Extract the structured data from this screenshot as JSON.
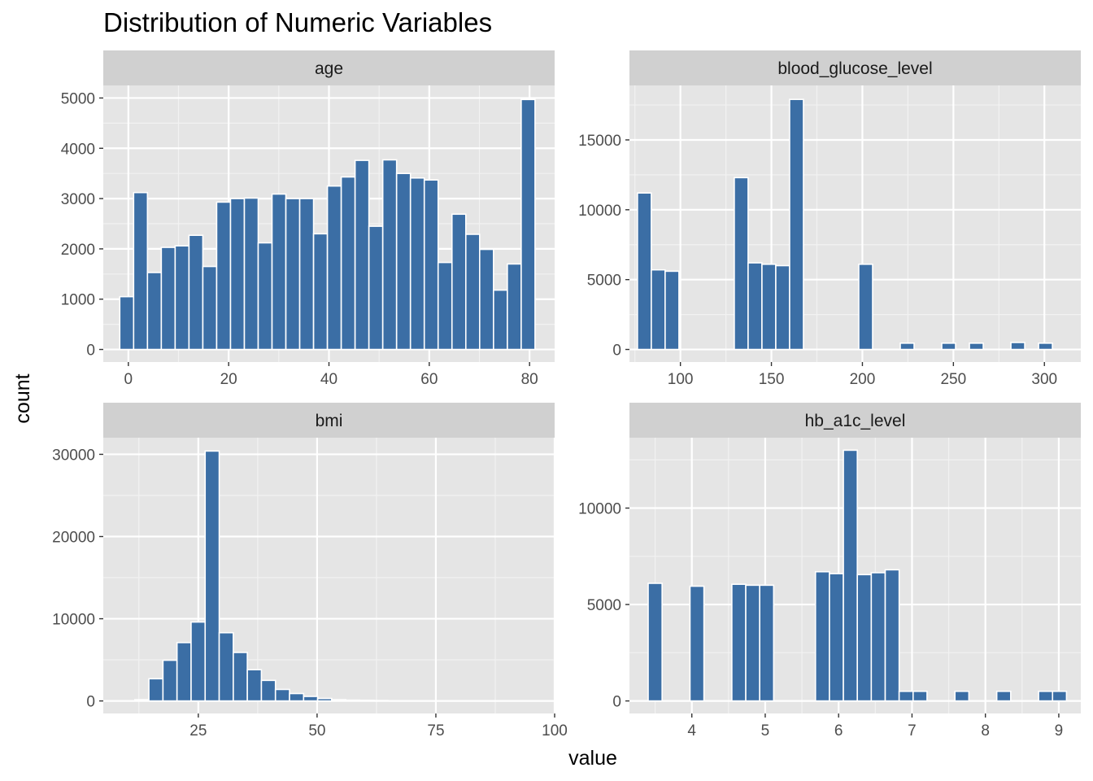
{
  "chart_data": {
    "type": "bar",
    "title": "Distribution of Numeric Variables",
    "xlabel": "value",
    "ylabel": "count",
    "grid": true,
    "bar_color": "#3b6ea5",
    "bar_outline_color": "#ffffff",
    "panel_background": "#e5e5e5",
    "strip_background": "#d0d0d0",
    "facets": [
      {
        "name": "age",
        "xlim": [
          -5,
          85
        ],
        "ylim": [
          -250,
          5250
        ],
        "x_ticks": [
          0,
          20,
          40,
          60,
          80
        ],
        "y_ticks": [
          0,
          1000,
          2000,
          3000,
          4000,
          5000
        ],
        "bin_width": 2.76,
        "bins": [
          {
            "x": -0.33,
            "count": 1050
          },
          {
            "x": 2.43,
            "count": 3120
          },
          {
            "x": 5.19,
            "count": 1530
          },
          {
            "x": 7.95,
            "count": 2030
          },
          {
            "x": 10.71,
            "count": 2060
          },
          {
            "x": 13.47,
            "count": 2270
          },
          {
            "x": 16.23,
            "count": 1650
          },
          {
            "x": 18.99,
            "count": 2930
          },
          {
            "x": 21.75,
            "count": 3000
          },
          {
            "x": 24.51,
            "count": 3010
          },
          {
            "x": 27.27,
            "count": 2120
          },
          {
            "x": 30.03,
            "count": 3090
          },
          {
            "x": 32.79,
            "count": 3000
          },
          {
            "x": 35.55,
            "count": 3000
          },
          {
            "x": 38.31,
            "count": 2300
          },
          {
            "x": 41.07,
            "count": 3250
          },
          {
            "x": 43.83,
            "count": 3430
          },
          {
            "x": 46.59,
            "count": 3760
          },
          {
            "x": 49.35,
            "count": 2450
          },
          {
            "x": 52.11,
            "count": 3770
          },
          {
            "x": 54.87,
            "count": 3500
          },
          {
            "x": 57.63,
            "count": 3410
          },
          {
            "x": 60.39,
            "count": 3370
          },
          {
            "x": 63.15,
            "count": 1730
          },
          {
            "x": 65.91,
            "count": 2690
          },
          {
            "x": 68.67,
            "count": 2290
          },
          {
            "x": 71.43,
            "count": 1990
          },
          {
            "x": 74.19,
            "count": 1180
          },
          {
            "x": 76.95,
            "count": 1700
          },
          {
            "x": 79.71,
            "count": 4970
          }
        ]
      },
      {
        "name": "blood_glucose_level",
        "xlim": [
          72,
          320
        ],
        "ylim": [
          -900,
          18900
        ],
        "x_ticks": [
          100,
          150,
          200,
          250,
          300
        ],
        "y_ticks": [
          0,
          5000,
          10000,
          15000
        ],
        "bin_width": 7.6,
        "bins": [
          {
            "x": 80.2,
            "count": 11200
          },
          {
            "x": 87.8,
            "count": 5700
          },
          {
            "x": 95.4,
            "count": 5600
          },
          {
            "x": 103.0,
            "count": 0
          },
          {
            "x": 110.6,
            "count": 0
          },
          {
            "x": 118.2,
            "count": 0
          },
          {
            "x": 125.8,
            "count": 0
          },
          {
            "x": 133.4,
            "count": 12300
          },
          {
            "x": 141.0,
            "count": 6200
          },
          {
            "x": 148.6,
            "count": 6100
          },
          {
            "x": 156.2,
            "count": 6000
          },
          {
            "x": 163.8,
            "count": 17900
          },
          {
            "x": 171.4,
            "count": 0
          },
          {
            "x": 179.0,
            "count": 0
          },
          {
            "x": 186.6,
            "count": 0
          },
          {
            "x": 194.2,
            "count": 0
          },
          {
            "x": 201.8,
            "count": 6100
          },
          {
            "x": 209.4,
            "count": 0
          },
          {
            "x": 217.0,
            "count": 0
          },
          {
            "x": 224.6,
            "count": 450
          },
          {
            "x": 232.2,
            "count": 0
          },
          {
            "x": 239.8,
            "count": 0
          },
          {
            "x": 247.4,
            "count": 450
          },
          {
            "x": 255.0,
            "count": 0
          },
          {
            "x": 262.6,
            "count": 450
          },
          {
            "x": 270.2,
            "count": 0
          },
          {
            "x": 277.8,
            "count": 0
          },
          {
            "x": 285.4,
            "count": 500
          },
          {
            "x": 293.0,
            "count": 0
          },
          {
            "x": 300.6,
            "count": 450
          }
        ]
      },
      {
        "name": "bmi",
        "xlim": [
          5,
          100
        ],
        "ylim": [
          -1525,
          32025
        ],
        "x_ticks": [
          25,
          50,
          75,
          100
        ],
        "y_ticks": [
          0,
          10000,
          20000,
          30000
        ],
        "bin_width": 2.96,
        "bins": [
          {
            "x": 10.16,
            "count": 30
          },
          {
            "x": 13.12,
            "count": 150
          },
          {
            "x": 16.08,
            "count": 2700
          },
          {
            "x": 19.04,
            "count": 4950
          },
          {
            "x": 22.0,
            "count": 7100
          },
          {
            "x": 24.96,
            "count": 9600
          },
          {
            "x": 27.92,
            "count": 30400
          },
          {
            "x": 30.88,
            "count": 8300
          },
          {
            "x": 33.84,
            "count": 5900
          },
          {
            "x": 36.8,
            "count": 3800
          },
          {
            "x": 39.76,
            "count": 2500
          },
          {
            "x": 42.72,
            "count": 1400
          },
          {
            "x": 45.68,
            "count": 900
          },
          {
            "x": 48.64,
            "count": 550
          },
          {
            "x": 51.6,
            "count": 300
          },
          {
            "x": 54.56,
            "count": 150
          },
          {
            "x": 57.52,
            "count": 100
          },
          {
            "x": 60.48,
            "count": 80
          },
          {
            "x": 63.44,
            "count": 50
          },
          {
            "x": 66.4,
            "count": 30
          },
          {
            "x": 69.36,
            "count": 20
          },
          {
            "x": 72.32,
            "count": 15
          },
          {
            "x": 75.28,
            "count": 10
          },
          {
            "x": 78.24,
            "count": 8
          },
          {
            "x": 81.2,
            "count": 5
          },
          {
            "x": 84.16,
            "count": 5
          },
          {
            "x": 87.12,
            "count": 3
          },
          {
            "x": 90.08,
            "count": 3
          },
          {
            "x": 93.04,
            "count": 2
          },
          {
            "x": 96.0,
            "count": 2
          }
        ]
      },
      {
        "name": "hb_a1c_level",
        "xlim": [
          3.15,
          9.3
        ],
        "ylim": [
          -650,
          13650
        ],
        "x_ticks": [
          4,
          5,
          6,
          7,
          8,
          9
        ],
        "y_ticks": [
          0,
          5000,
          10000
        ],
        "bin_width": 0.19,
        "bins": [
          {
            "x": 3.5,
            "count": 6100
          },
          {
            "x": 3.69,
            "count": 0
          },
          {
            "x": 3.88,
            "count": 0
          },
          {
            "x": 4.07,
            "count": 5950
          },
          {
            "x": 4.26,
            "count": 0
          },
          {
            "x": 4.45,
            "count": 0
          },
          {
            "x": 4.64,
            "count": 6050
          },
          {
            "x": 4.83,
            "count": 6000
          },
          {
            "x": 5.02,
            "count": 6000
          },
          {
            "x": 5.21,
            "count": 0
          },
          {
            "x": 5.4,
            "count": 0
          },
          {
            "x": 5.59,
            "count": 0
          },
          {
            "x": 5.78,
            "count": 6700
          },
          {
            "x": 5.97,
            "count": 6600
          },
          {
            "x": 6.16,
            "count": 13000
          },
          {
            "x": 6.35,
            "count": 6550
          },
          {
            "x": 6.54,
            "count": 6650
          },
          {
            "x": 6.73,
            "count": 6800
          },
          {
            "x": 6.92,
            "count": 500
          },
          {
            "x": 7.11,
            "count": 500
          },
          {
            "x": 7.3,
            "count": 0
          },
          {
            "x": 7.49,
            "count": 0
          },
          {
            "x": 7.68,
            "count": 500
          },
          {
            "x": 7.87,
            "count": 0
          },
          {
            "x": 8.06,
            "count": 0
          },
          {
            "x": 8.25,
            "count": 500
          },
          {
            "x": 8.44,
            "count": 0
          },
          {
            "x": 8.63,
            "count": 0
          },
          {
            "x": 8.82,
            "count": 500
          },
          {
            "x": 9.01,
            "count": 500
          }
        ]
      }
    ]
  }
}
